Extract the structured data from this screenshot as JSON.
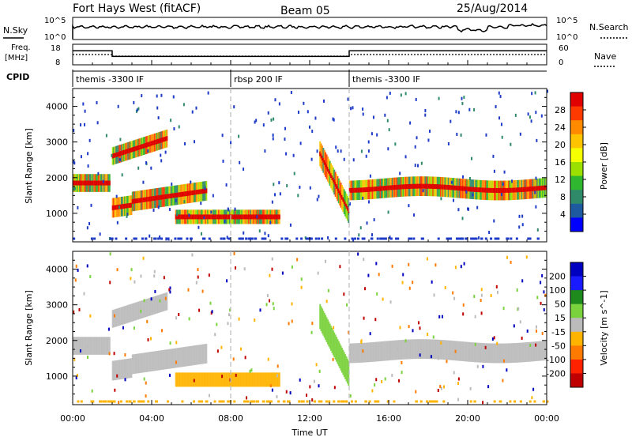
{
  "header": {
    "station": "Fort Hays West (fitACF)",
    "beam": "Beam 05",
    "date": "25/Aug/2014"
  },
  "sky_panel": {
    "left_label": "N.Sky",
    "right_label": "N.Search",
    "left_ticks": [
      "10^5",
      "10^0"
    ],
    "right_ticks": [
      "10^5",
      "10^0"
    ]
  },
  "freq_panel": {
    "left_label_line1": "Freq.",
    "left_label_line2": "[MHz]",
    "right_label": "Nave",
    "left_ticks": [
      "18",
      "8"
    ],
    "right_ticks": [
      "60",
      "0"
    ]
  },
  "cpid_panel": {
    "label": "CPID",
    "segments": [
      {
        "start_hour": 0,
        "end_hour": 8,
        "name": "themis -3300 IF"
      },
      {
        "start_hour": 8,
        "end_hour": 14,
        "name": "rbsp 200 IF"
      },
      {
        "start_hour": 14,
        "end_hour": 24,
        "name": "themis -3300 IF"
      }
    ]
  },
  "power_panel": {
    "ylabel": "Slant Range [km]",
    "colorbar_label": "Power [dB]",
    "colorbar_ticks": [
      "28",
      "24",
      "20",
      "16",
      "12",
      "8",
      "4"
    ],
    "colorbar_colors": [
      "#e00000",
      "#ff3a00",
      "#ff8a00",
      "#ffc400",
      "#f5ff00",
      "#9be000",
      "#2fb82f",
      "#2f8a6a",
      "#1e5aa0",
      "#0000ff"
    ]
  },
  "velocity_panel": {
    "ylabel": "Slant Range [km]",
    "colorbar_label": "Velocity [m s^-1]",
    "colorbar_ticks": [
      "200",
      "100",
      "50",
      "15",
      "-15",
      "-50",
      "-100",
      "-200"
    ],
    "colorbar_colors": [
      "#0000c0",
      "#1a1aff",
      "#1e8a1e",
      "#7ad23c",
      "#bbbbbb",
      "#ffb400",
      "#ff7a00",
      "#ff2200",
      "#c00000"
    ]
  },
  "chart_data": {
    "type": "heatmap",
    "xlabel": "Time UT",
    "x_ticks": [
      "00:00",
      "04:00",
      "08:00",
      "12:00",
      "16:00",
      "20:00",
      "00:00"
    ],
    "xlim_hours": [
      0,
      24
    ],
    "y_ticks": [
      "4000",
      "3000",
      "2000",
      "1000"
    ],
    "ylim_km": [
      200,
      4500
    ],
    "dashed_vertical_lines_hours": [
      8,
      14
    ],
    "echo_bands": [
      {
        "name": "main",
        "start_hour": 0.0,
        "end_hour": 1.9,
        "center_km": 1850,
        "width_km": 500
      },
      {
        "name": "main",
        "start_hour": 2.0,
        "end_hour": 6.8,
        "center_km": 1250,
        "width_km": 550
      },
      {
        "name": "upper-arc",
        "start_hour": 2.0,
        "end_hour": 4.8,
        "center_km": 2600,
        "width_km": 500
      },
      {
        "name": "low",
        "start_hour": 5.2,
        "end_hour": 10.5,
        "center_km": 900,
        "width_km": 400
      },
      {
        "name": "streak",
        "start_hour": 12.5,
        "end_hour": 14.0,
        "center_km": 1700,
        "width_km": 700
      },
      {
        "name": "main",
        "start_hour": 14.0,
        "end_hour": 24.0,
        "center_km": 1700,
        "width_km": 550
      }
    ],
    "freq_mhz": [
      {
        "start_hour": 0,
        "end_hour": 2,
        "value": 15
      },
      {
        "start_hour": 2,
        "end_hour": 14,
        "value": 12
      },
      {
        "start_hour": 14,
        "end_hour": 24,
        "value": 15
      }
    ],
    "nave": [
      {
        "start_hour": 0,
        "end_hour": 2,
        "value": 30
      },
      {
        "start_hour": 2,
        "end_hour": 14,
        "value": 25
      },
      {
        "start_hour": 14,
        "end_hour": 24,
        "value": 30
      }
    ]
  }
}
